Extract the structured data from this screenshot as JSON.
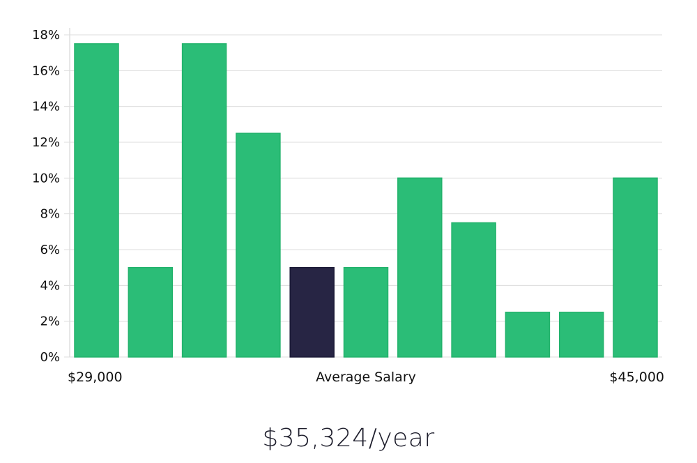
{
  "chart_data": {
    "type": "bar",
    "ylabel": "",
    "xlabel": "Average Salary",
    "x_range_labels": {
      "min": "$29,000",
      "max": "$45,000"
    },
    "ylim": [
      0,
      18
    ],
    "y_ticks": [
      0,
      2,
      4,
      6,
      8,
      10,
      12,
      14,
      16,
      18
    ],
    "y_tick_suffix": "%",
    "grid": true,
    "values": [
      17.5,
      5,
      17.5,
      12.5,
      5,
      5,
      10,
      7.5,
      2.5,
      2.5,
      10
    ],
    "highlight_index": 4,
    "colors": {
      "bar": "#2bbd77",
      "bar_edge": "#22b26b",
      "highlight": "#272544",
      "grid": "#dcdcdc"
    }
  },
  "summary": {
    "salary_text": "$35,324/year"
  }
}
